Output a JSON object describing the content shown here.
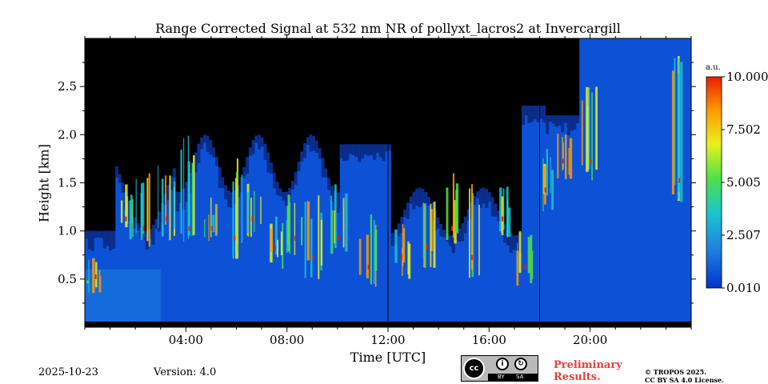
{
  "chart_data": {
    "type": "heatmap",
    "title": "Range Corrected Signal at 532 nm NR of pollyxt_lacros2 at Invercargill",
    "xlabel": "Time [UTC]",
    "ylabel": "Height [km]",
    "x_range_hours": [
      0,
      24
    ],
    "y_range_km": [
      0,
      3.0
    ],
    "x_ticks": [
      {
        "value": 4,
        "label": "04:00"
      },
      {
        "value": 8,
        "label": "08:00"
      },
      {
        "value": 12,
        "label": "12:00"
      },
      {
        "value": 16,
        "label": "16:00"
      },
      {
        "value": 20,
        "label": "20:00"
      }
    ],
    "y_ticks": [
      {
        "value": 0.5,
        "label": "0.5"
      },
      {
        "value": 1.0,
        "label": "1.0"
      },
      {
        "value": 1.5,
        "label": "1.5"
      },
      {
        "value": 2.0,
        "label": "2.0"
      },
      {
        "value": 2.5,
        "label": "2.5"
      }
    ],
    "colorbar": {
      "unit": "a.u.",
      "range": [
        0.01,
        10.0
      ],
      "ticks": [
        {
          "value": 10.0,
          "label": "10.000"
        },
        {
          "value": 7.502,
          "label": "7.502"
        },
        {
          "value": 5.005,
          "label": "5.005"
        },
        {
          "value": 2.507,
          "label": "2.507"
        },
        {
          "value": 0.01,
          "label": "0.010"
        }
      ],
      "colors": [
        "#0033cc",
        "#1f7fe0",
        "#19c4d0",
        "#4fe04a",
        "#e8f21a",
        "#ff9a00",
        "#e81e00"
      ]
    },
    "features": {
      "vertical_markers_hours": [
        12.0,
        18.0
      ],
      "cloud_events": [
        {
          "t": 0.4,
          "base": 0.3,
          "top": 0.75
        },
        {
          "t": 1.6,
          "base": 0.9,
          "top": 1.5
        },
        {
          "t": 2.3,
          "base": 0.8,
          "top": 1.6
        },
        {
          "t": 3.2,
          "base": 0.9,
          "top": 1.7
        },
        {
          "t": 4.1,
          "base": 0.8,
          "top": 2.0
        },
        {
          "t": 5.0,
          "base": 0.8,
          "top": 1.4
        },
        {
          "t": 5.9,
          "base": 0.7,
          "top": 1.8
        },
        {
          "t": 6.6,
          "base": 0.9,
          "top": 1.5
        },
        {
          "t": 7.5,
          "base": 0.6,
          "top": 1.2
        },
        {
          "t": 8.3,
          "base": 0.7,
          "top": 1.4
        },
        {
          "t": 9.0,
          "base": 0.5,
          "top": 1.4
        },
        {
          "t": 10.0,
          "base": 0.7,
          "top": 1.5
        },
        {
          "t": 11.2,
          "base": 0.4,
          "top": 1.2
        },
        {
          "t": 12.5,
          "base": 0.5,
          "top": 1.1
        },
        {
          "t": 13.5,
          "base": 0.6,
          "top": 1.5
        },
        {
          "t": 14.5,
          "base": 0.8,
          "top": 1.6
        },
        {
          "t": 15.3,
          "base": 0.5,
          "top": 1.5
        },
        {
          "t": 16.5,
          "base": 0.9,
          "top": 1.5
        },
        {
          "t": 17.4,
          "base": 0.4,
          "top": 1.0
        },
        {
          "t": 18.2,
          "base": 1.2,
          "top": 1.9
        },
        {
          "t": 18.9,
          "base": 1.5,
          "top": 2.1
        },
        {
          "t": 20.0,
          "base": 1.5,
          "top": 2.6
        },
        {
          "t": 23.5,
          "base": 1.3,
          "top": 2.9
        }
      ]
    }
  },
  "footer": {
    "date": "2025-10-23",
    "version": "Version: 4.0",
    "preliminary": "Preliminary Results.",
    "copyright_line1": "© TROPOS 2025.",
    "copyright_line2": "CC BY SA 4.0 License.",
    "license_badge": {
      "cc": "cc",
      "by": "BY",
      "sa": "SA"
    }
  }
}
